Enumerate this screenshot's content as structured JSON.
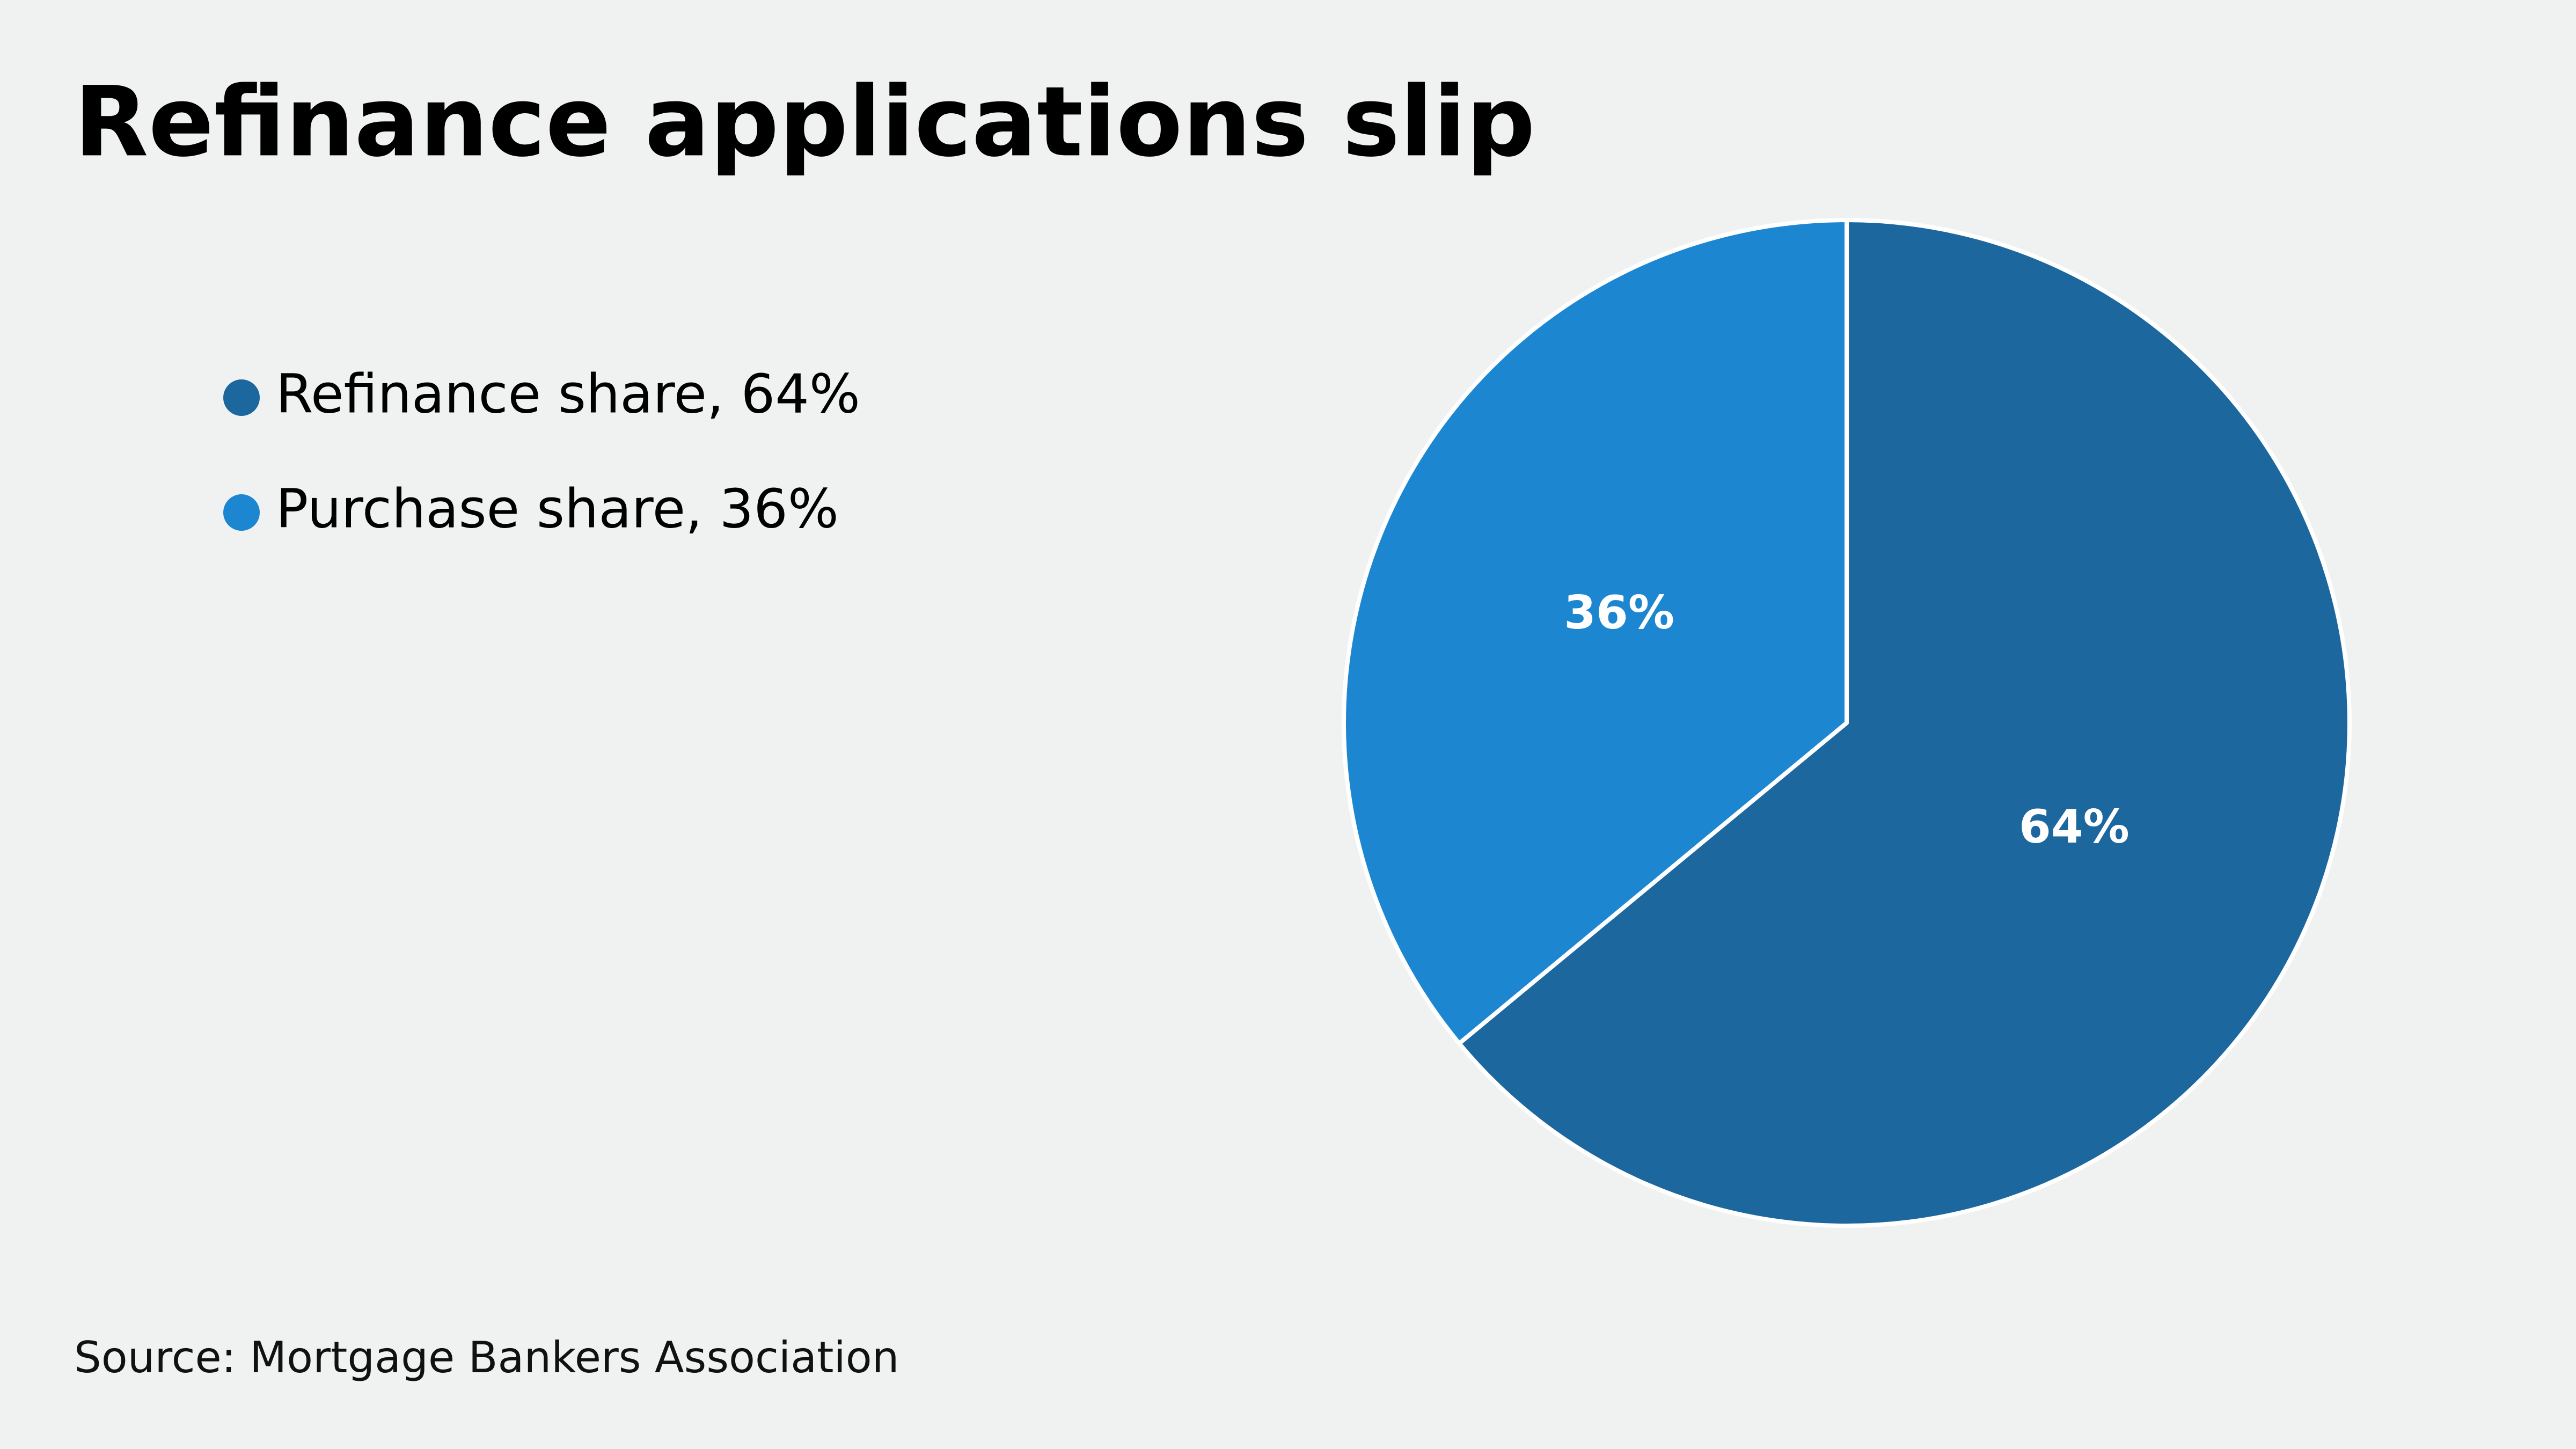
{
  "chart_data": {
    "type": "pie",
    "title": "Refinance applications slip",
    "categories": [
      "Refinance share, 64%",
      "Purchase share, 36%"
    ],
    "values": [
      64,
      36
    ],
    "value_labels": [
      "64%",
      "36%"
    ],
    "colors": [
      "#1b679e",
      "#1c86d1"
    ],
    "source": "Source: Mortgage Bankers Association",
    "legend": "top-left"
  }
}
